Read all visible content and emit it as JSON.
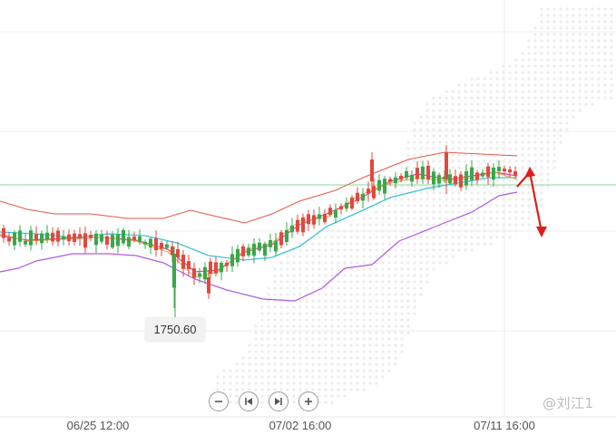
{
  "price_tag": "1750.60",
  "watermark": "@刘江1",
  "controls": [
    {
      "name": "zoom-out-button",
      "icon": "minus-icon"
    },
    {
      "name": "step-back-button",
      "icon": "step-back-icon"
    },
    {
      "name": "step-forward-button",
      "icon": "step-forward-icon"
    },
    {
      "name": "zoom-in-button",
      "icon": "plus-icon"
    }
  ],
  "colors": {
    "up": "#e0493e",
    "down": "#38a84a",
    "upper_band": "#e25a4a",
    "lower_band": "#b05be0",
    "ma_mid": "#3ec1d9",
    "ma_fast": "#e0409a",
    "ma_slow": "#f0a640",
    "arrow": "#e01d1d",
    "hline": "#8fd5a0"
  },
  "chart_data": {
    "type": "candlestick",
    "x_tick_labels": [
      "06/25 12:00",
      "07/02 16:00",
      "07/11 16:00"
    ],
    "highlighted_price": 1750.6,
    "series": [
      {
        "name": "",
        "role": "bollinger-upper"
      },
      {
        "name": "",
        "role": "bollinger-lower"
      },
      {
        "name": "",
        "role": "middle-average"
      },
      {
        "name": "",
        "role": "fast-average"
      },
      {
        "name": "",
        "role": "slow-average"
      }
    ]
  }
}
